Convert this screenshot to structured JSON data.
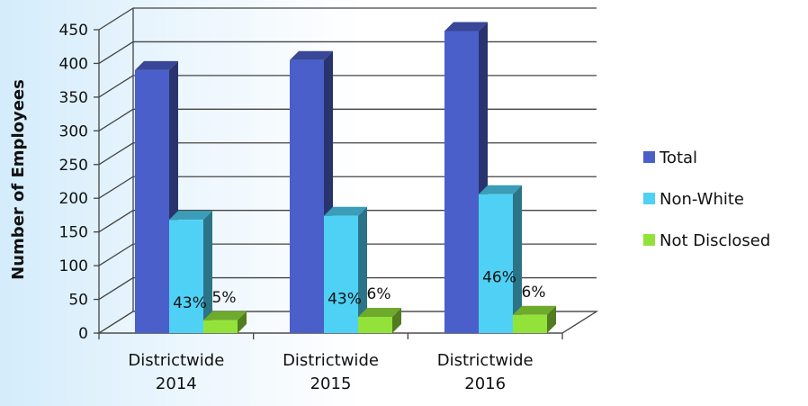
{
  "chart_data": {
    "type": "bar",
    "ylabel": "Number of Employees",
    "ylim": [
      0,
      450
    ],
    "yticks": [
      0,
      50,
      100,
      150,
      200,
      250,
      300,
      350,
      400,
      450
    ],
    "categories": [
      "Districtwide 2014",
      "Districtwide 2015",
      "Districtwide 2016"
    ],
    "category_lines": [
      [
        "Districtwide",
        "2014"
      ],
      [
        "Districtwide",
        "2015"
      ],
      [
        "Districtwide",
        "2016"
      ]
    ],
    "series": [
      {
        "name": "Total",
        "values": [
          390,
          405,
          448
        ],
        "labels": [
          "",
          "",
          ""
        ],
        "color": "#4a5fc9"
      },
      {
        "name": "Non-White",
        "values": [
          168,
          174,
          206
        ],
        "labels": [
          "43%",
          "43%",
          "46%"
        ],
        "color": "#4fd1f5"
      },
      {
        "name": "Not Disclosed",
        "values": [
          19,
          24,
          27
        ],
        "labels": [
          "5%",
          "6%",
          "6%"
        ],
        "color": "#93e23a"
      }
    ],
    "grid": true,
    "legend_position": "right",
    "three_d": true
  }
}
